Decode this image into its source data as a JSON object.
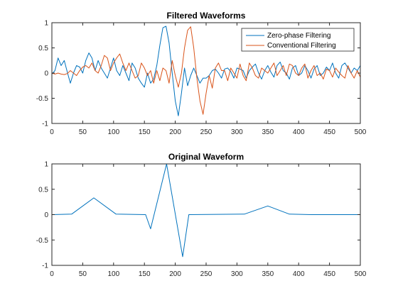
{
  "chart_data": [
    {
      "type": "line",
      "title": "Filtered Waveforms",
      "xlabel": "",
      "ylabel": "",
      "xlim": [
        0,
        500
      ],
      "ylim": [
        -1,
        1
      ],
      "xticks": [
        0,
        50,
        100,
        150,
        200,
        250,
        300,
        350,
        400,
        450,
        500
      ],
      "yticks": [
        -1,
        -0.5,
        0,
        0.5,
        1
      ],
      "xtick_labels": [
        "0",
        "50",
        "100",
        "150",
        "200",
        "250",
        "300",
        "350",
        "400",
        "450",
        "500"
      ],
      "ytick_labels": [
        "-1",
        "-0.5",
        "0",
        "0.5",
        "1"
      ],
      "grid": false,
      "legend": "top-right",
      "series": [
        {
          "name": "Zero-phase Filtering",
          "color": "#0072BD",
          "x": [
            0,
            5,
            10,
            15,
            20,
            25,
            30,
            35,
            40,
            45,
            50,
            55,
            60,
            65,
            70,
            75,
            80,
            85,
            90,
            95,
            100,
            105,
            110,
            115,
            120,
            125,
            130,
            135,
            140,
            145,
            150,
            155,
            160,
            165,
            170,
            175,
            180,
            185,
            190,
            195,
            200,
            205,
            210,
            215,
            220,
            225,
            230,
            235,
            240,
            245,
            250,
            255,
            260,
            265,
            270,
            275,
            280,
            285,
            290,
            295,
            300,
            305,
            310,
            315,
            320,
            325,
            330,
            335,
            340,
            345,
            350,
            355,
            360,
            365,
            370,
            375,
            380,
            385,
            390,
            395,
            400,
            405,
            410,
            415,
            420,
            425,
            430,
            435,
            440,
            445,
            450,
            455,
            460,
            465,
            470,
            475,
            480,
            485,
            490,
            495,
            500
          ],
          "values": [
            -0.02,
            0.05,
            0.3,
            0.15,
            0.25,
            0.02,
            -0.2,
            0.0,
            0.15,
            0.12,
            0.0,
            0.25,
            0.4,
            0.3,
            0.05,
            0.25,
            0.1,
            0.0,
            -0.1,
            0.1,
            0.3,
            0.05,
            -0.05,
            0.15,
            0.0,
            -0.15,
            0.2,
            0.1,
            -0.1,
            -0.2,
            -0.28,
            0.0,
            -0.2,
            -0.12,
            0.15,
            0.55,
            0.9,
            0.93,
            0.6,
            0.0,
            -0.55,
            -0.85,
            -0.4,
            0.1,
            -0.25,
            -0.05,
            0.1,
            -0.05,
            -0.2,
            -0.1,
            -0.1,
            -0.05,
            0.05,
            0.08,
            0.0,
            -0.1,
            0.08,
            0.1,
            0.03,
            -0.1,
            0.1,
            0.08,
            0.05,
            -0.1,
            0.05,
            0.12,
            0.18,
            0.0,
            -0.12,
            0.05,
            0.15,
            0.02,
            -0.08,
            0.15,
            0.22,
            0.05,
            0.0,
            -0.12,
            0.1,
            0.15,
            -0.05,
            0.0,
            0.15,
            0.05,
            -0.1,
            0.08,
            0.15,
            -0.05,
            0.0,
            0.12,
            0.05,
            0.2,
            0.0,
            -0.1,
            0.15,
            0.2,
            0.1,
            0.0,
            0.1,
            0.05,
            0.15
          ]
        },
        {
          "name": "Conventional Filtering",
          "color": "#D95319",
          "x": [
            0,
            5,
            10,
            15,
            20,
            25,
            30,
            35,
            40,
            45,
            50,
            55,
            60,
            65,
            70,
            75,
            80,
            85,
            90,
            95,
            100,
            105,
            110,
            115,
            120,
            125,
            130,
            135,
            140,
            145,
            150,
            155,
            160,
            165,
            170,
            175,
            180,
            185,
            190,
            195,
            200,
            205,
            210,
            215,
            220,
            225,
            230,
            235,
            240,
            245,
            250,
            255,
            260,
            265,
            270,
            275,
            280,
            285,
            290,
            295,
            300,
            305,
            310,
            315,
            320,
            325,
            330,
            335,
            340,
            345,
            350,
            355,
            360,
            365,
            370,
            375,
            380,
            385,
            390,
            395,
            400,
            405,
            410,
            415,
            420,
            425,
            430,
            435,
            440,
            445,
            450,
            455,
            460,
            465,
            470,
            475,
            480,
            485,
            490,
            495,
            500
          ],
          "values": [
            0.0,
            -0.02,
            0.0,
            -0.02,
            -0.03,
            -0.01,
            0.05,
            0.0,
            -0.05,
            0.05,
            0.12,
            0.15,
            0.1,
            0.2,
            0.05,
            0.0,
            0.15,
            0.35,
            0.3,
            0.05,
            0.2,
            0.3,
            0.38,
            0.2,
            0.05,
            0.2,
            0.05,
            -0.1,
            -0.05,
            0.2,
            0.1,
            -0.05,
            0.05,
            -0.2,
            0.05,
            -0.15,
            0.1,
            0.05,
            -0.2,
            0.25,
            -0.05,
            -0.28,
            0.0,
            0.5,
            0.85,
            0.92,
            0.5,
            -0.1,
            -0.55,
            -0.82,
            -0.4,
            -0.05,
            -0.3,
            0.1,
            0.2,
            0.05,
            0.05,
            -0.15,
            0.1,
            0.0,
            -0.1,
            0.18,
            -0.05,
            -0.15,
            0.2,
            0.1,
            -0.05,
            -0.1,
            0.1,
            0.05,
            0.0,
            0.1,
            0.2,
            -0.05,
            0.05,
            0.15,
            -0.05,
            0.18,
            0.15,
            0.0,
            -0.05,
            0.1,
            0.18,
            -0.1,
            0.05,
            0.15,
            -0.05,
            0.0,
            -0.12,
            0.08,
            0.05,
            -0.08,
            0.1,
            0.02,
            -0.05,
            -0.1,
            0.15,
            0.0,
            -0.1,
            0.05,
            -0.08
          ]
        }
      ]
    },
    {
      "type": "line",
      "title": "Original Waveform",
      "xlabel": "",
      "ylabel": "",
      "xlim": [
        0,
        500
      ],
      "ylim": [
        -1,
        1
      ],
      "xticks": [
        0,
        50,
        100,
        150,
        200,
        250,
        300,
        350,
        400,
        450,
        500
      ],
      "yticks": [
        -1,
        -0.5,
        0,
        0.5,
        1
      ],
      "xtick_labels": [
        "0",
        "50",
        "100",
        "150",
        "200",
        "250",
        "300",
        "350",
        "400",
        "450",
        "500"
      ],
      "ytick_labels": [
        "-1",
        "-0.5",
        "0",
        "0.5",
        "1"
      ],
      "grid": false,
      "series": [
        {
          "name": "",
          "color": "#0072BD",
          "x": [
            0,
            32,
            68,
            104,
            152,
            160,
            186,
            212,
            222,
            312,
            350,
            385,
            420,
            500
          ],
          "values": [
            0,
            0.01,
            0.33,
            0.01,
            0,
            -0.28,
            1.0,
            -0.83,
            0,
            0.01,
            0.17,
            0.01,
            0,
            0
          ]
        }
      ]
    }
  ]
}
